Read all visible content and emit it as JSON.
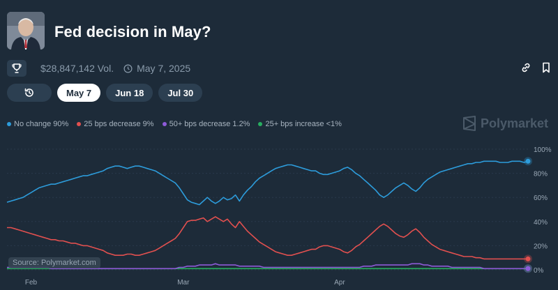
{
  "market": {
    "title": "Fed decision in May?",
    "volume": "$28,847,142 Vol.",
    "date": "May 7, 2025"
  },
  "icons": [
    "trophy-icon",
    "clock-icon",
    "link-icon",
    "bookmark-icon",
    "history-icon",
    "polymarket-logo-icon"
  ],
  "tabs": [
    {
      "label": "May 7",
      "active": true
    },
    {
      "label": "Jun 18",
      "active": false
    },
    {
      "label": "Jul 30",
      "active": false
    }
  ],
  "legend": [
    {
      "label": "No change 90%",
      "color": "#2d9cdb"
    },
    {
      "label": "25 bps decrease 9%",
      "color": "#e2504f"
    },
    {
      "label": "50+ bps decrease 1.2%",
      "color": "#8e5bd9"
    },
    {
      "label": "25+ bps increase <1%",
      "color": "#27ae60"
    }
  ],
  "watermark": "Polymarket",
  "source": "Source: Polymarket.com",
  "chart_data": {
    "type": "line",
    "title": "Fed decision in May?",
    "x_labels": [
      "Feb",
      "Mar",
      "Apr"
    ],
    "x_label_index": [
      6,
      44,
      83
    ],
    "y_ticks": [
      "100%",
      "80%",
      "60%",
      "40%",
      "20%",
      "0%"
    ],
    "ylim": [
      0,
      100
    ],
    "x_count": 131,
    "series": [
      {
        "name": "No change",
        "color": "#2d9cdb",
        "values": [
          56,
          57,
          58,
          59,
          60,
          62,
          64,
          66,
          68,
          69,
          70,
          71,
          71,
          72,
          73,
          74,
          75,
          76,
          77,
          78,
          78,
          79,
          80,
          81,
          82,
          84,
          85,
          86,
          86,
          85,
          84,
          85,
          86,
          86,
          85,
          84,
          83,
          82,
          80,
          78,
          76,
          74,
          72,
          68,
          63,
          58,
          56,
          55,
          54,
          57,
          60,
          57,
          55,
          57,
          60,
          58,
          59,
          62,
          57,
          62,
          66,
          69,
          73,
          76,
          78,
          80,
          82,
          84,
          85,
          86,
          87,
          87,
          86,
          85,
          84,
          83,
          82,
          82,
          80,
          79,
          79,
          80,
          81,
          82,
          84,
          85,
          83,
          80,
          78,
          75,
          72,
          69,
          66,
          62,
          60,
          62,
          65,
          68,
          70,
          72,
          70,
          67,
          65,
          68,
          72,
          75,
          77,
          79,
          81,
          82,
          83,
          84,
          85,
          86,
          87,
          88,
          88,
          89,
          89,
          90,
          90,
          90,
          90,
          89,
          89,
          89,
          90,
          90,
          90,
          89,
          90
        ]
      },
      {
        "name": "25 bps decrease",
        "color": "#e2504f",
        "values": [
          35,
          35,
          34,
          33,
          32,
          31,
          30,
          29,
          28,
          27,
          26,
          25,
          25,
          24,
          24,
          23,
          22,
          22,
          21,
          20,
          20,
          19,
          18,
          17,
          16,
          14,
          13,
          12,
          12,
          12,
          13,
          13,
          12,
          12,
          13,
          14,
          15,
          16,
          18,
          20,
          22,
          24,
          26,
          30,
          35,
          40,
          41,
          41,
          42,
          43,
          40,
          42,
          44,
          42,
          40,
          42,
          38,
          35,
          40,
          36,
          32,
          29,
          26,
          23,
          21,
          19,
          17,
          15,
          14,
          13,
          12,
          12,
          13,
          14,
          15,
          16,
          17,
          17,
          19,
          20,
          20,
          19,
          18,
          17,
          15,
          14,
          16,
          19,
          21,
          24,
          27,
          30,
          33,
          36,
          38,
          36,
          33,
          30,
          28,
          27,
          29,
          32,
          34,
          31,
          27,
          24,
          21,
          19,
          17,
          16,
          15,
          14,
          13,
          12,
          11,
          11,
          11,
          10,
          10,
          9,
          9,
          9,
          9,
          9,
          9,
          9,
          9,
          9,
          9,
          9,
          9
        ]
      },
      {
        "name": "50+ bps decrease",
        "color": "#8e5bd9",
        "values": [
          2,
          2,
          2,
          2,
          2,
          2,
          2,
          2,
          2,
          2,
          2,
          1,
          1,
          1,
          1,
          1,
          1,
          1,
          1,
          1,
          1,
          1,
          1,
          1,
          1,
          1,
          1,
          1,
          1,
          1,
          1,
          1,
          1,
          1,
          1,
          1,
          1,
          1,
          1,
          1,
          1,
          1,
          1,
          2,
          2,
          3,
          3,
          3,
          4,
          4,
          4,
          4,
          5,
          4,
          4,
          4,
          4,
          4,
          3,
          3,
          3,
          3,
          3,
          3,
          2,
          2,
          2,
          2,
          2,
          2,
          2,
          2,
          2,
          2,
          2,
          2,
          2,
          2,
          2,
          2,
          2,
          2,
          2,
          2,
          2,
          2,
          2,
          2,
          2,
          3,
          3,
          3,
          4,
          4,
          4,
          4,
          4,
          4,
          4,
          4,
          4,
          5,
          5,
          5,
          4,
          4,
          3,
          3,
          3,
          3,
          3,
          2,
          2,
          2,
          2,
          2,
          2,
          2,
          2,
          1,
          1,
          1,
          1,
          1,
          1,
          1,
          1,
          1,
          1,
          1,
          1
        ]
      },
      {
        "name": "25+ bps increase",
        "color": "#27ae60",
        "values": [
          1,
          1,
          1,
          1,
          1,
          1,
          1,
          1,
          1,
          1,
          1,
          1,
          1,
          1,
          1,
          1,
          1,
          1,
          1,
          1,
          1,
          1,
          1,
          1,
          1,
          1,
          1,
          1,
          1,
          1,
          1,
          1,
          1,
          1,
          1,
          1,
          1,
          1,
          1,
          1,
          1,
          1,
          1,
          1,
          1,
          1,
          1,
          1,
          1,
          1,
          1,
          1,
          1,
          1,
          1,
          1,
          1,
          1,
          1,
          1,
          1,
          1,
          1,
          1,
          1,
          1,
          1,
          1,
          1,
          1,
          1,
          1,
          1,
          1,
          1,
          1,
          1,
          1,
          1,
          1,
          1,
          1,
          1,
          1,
          1,
          1,
          1,
          1,
          1,
          1,
          1,
          1,
          1,
          1,
          1,
          1,
          1,
          1,
          1,
          1,
          1,
          1,
          1,
          1,
          1,
          1,
          1,
          1,
          1,
          1,
          1,
          1,
          1,
          1,
          1,
          1,
          1,
          1,
          1,
          1,
          1,
          1,
          1,
          1,
          1,
          1,
          1,
          1,
          1,
          1,
          1
        ]
      }
    ]
  }
}
